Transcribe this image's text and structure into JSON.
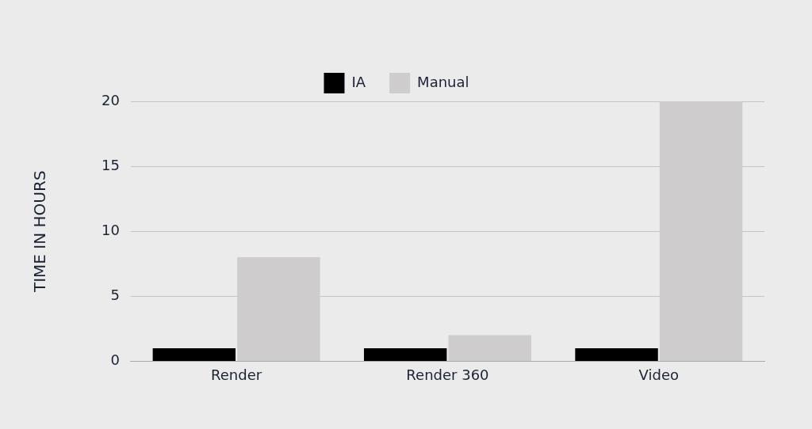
{
  "chart_data": {
    "type": "bar",
    "ylabel": "TIME IN HOURS",
    "categories": [
      "Render",
      "Render 360",
      "Video"
    ],
    "series": [
      {
        "name": "IA",
        "color": "#000000",
        "values": [
          1,
          1,
          1
        ]
      },
      {
        "name": "Manual",
        "color": "#cecccd",
        "values": [
          8,
          2,
          20
        ]
      }
    ],
    "ylim": [
      0,
      20
    ],
    "yticks": [
      0,
      5,
      10,
      15,
      20
    ],
    "grid": "y",
    "legend": "top"
  }
}
